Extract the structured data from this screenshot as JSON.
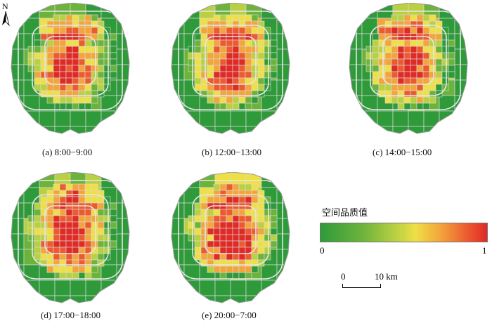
{
  "north_label": "N",
  "panels": [
    {
      "caption": "(a) 8:00−9:00",
      "variant": 0
    },
    {
      "caption": "(b) 12:00−13:00",
      "variant": 1
    },
    {
      "caption": "(c) 14:00−15:00",
      "variant": 2
    },
    {
      "caption": "(d) 17:00−18:00",
      "variant": 3
    },
    {
      "caption": "(e) 20:00−7:00",
      "variant": 4
    }
  ],
  "legend": {
    "title": "空间品质值",
    "min_label": "0",
    "max_label": "1",
    "colors": [
      "#2f9a3a",
      "#6cb33c",
      "#b9d042",
      "#eedf46",
      "#f3a43b",
      "#ec5b30",
      "#e02a26"
    ]
  },
  "scale_bar": {
    "start_label": "0",
    "end_label": "10 km"
  }
}
